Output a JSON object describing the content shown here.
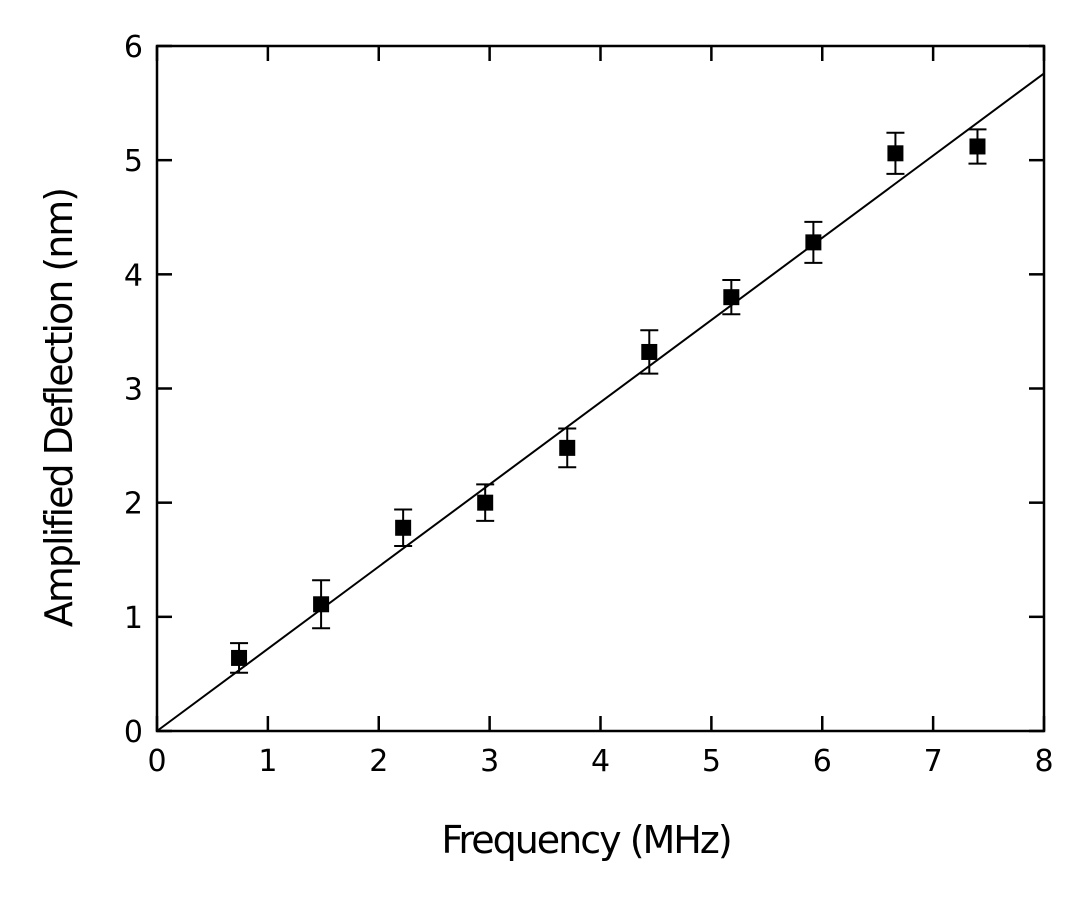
{
  "chart_data": {
    "type": "scatter",
    "title": "",
    "xlabel": "Frequency (MHz)",
    "ylabel": "Amplified Deflection (nm)",
    "xlim": [
      0,
      8
    ],
    "ylim": [
      0,
      6
    ],
    "x_ticks": [
      "0",
      "1",
      "2",
      "3",
      "4",
      "5",
      "6",
      "7",
      "8"
    ],
    "y_ticks": [
      "0",
      "1",
      "2",
      "3",
      "4",
      "5",
      "6"
    ],
    "grid": false,
    "legend": "none",
    "marker": "filled-square",
    "color": "#000000",
    "series": [
      {
        "x": [
          0.74,
          1.48,
          2.22,
          2.96,
          3.7,
          4.44,
          5.18,
          5.92,
          6.66,
          7.4
        ],
        "y": [
          0.64,
          1.11,
          1.78,
          2.0,
          2.48,
          3.32,
          3.8,
          4.28,
          5.06,
          5.12
        ],
        "yerr": [
          0.13,
          0.21,
          0.16,
          0.16,
          0.17,
          0.19,
          0.15,
          0.18,
          0.18,
          0.15
        ]
      }
    ],
    "fit_line": {
      "slope": 0.72,
      "intercept": 0.0,
      "x_range": [
        0,
        8
      ]
    }
  }
}
